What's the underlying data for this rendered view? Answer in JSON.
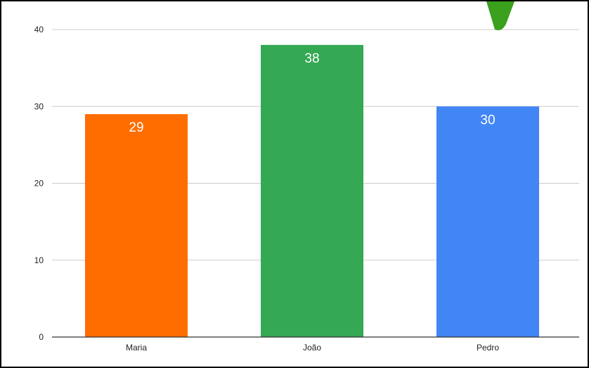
{
  "chart_data": {
    "type": "bar",
    "title": "",
    "xlabel": "",
    "ylabel": "",
    "categories": [
      "Maria",
      "João",
      "Pedro"
    ],
    "values": [
      29,
      38,
      30
    ],
    "colors": [
      "#ff6d01",
      "#34a853",
      "#4285f4"
    ],
    "ylim": [
      0,
      40
    ],
    "yticks": [
      0,
      10,
      20,
      30,
      40
    ],
    "grid": true,
    "legend": "none",
    "data_labels": true,
    "gridline_color": "#cccccc",
    "baseline_color": "#333333"
  },
  "decoration": {
    "check_icon_color": "#3aa01d"
  }
}
